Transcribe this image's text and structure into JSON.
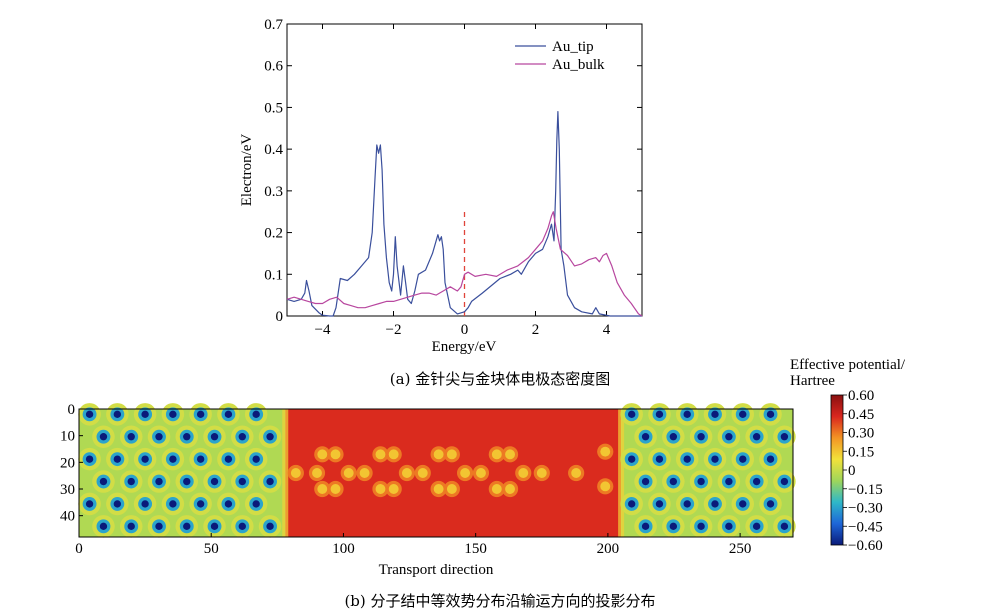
{
  "chart_data": [
    {
      "type": "line",
      "caption": "(a) 金针尖与金块体电极态密度图",
      "xlabel": "Energy/eV",
      "ylabel": "Electron/eV",
      "xlim": [
        -5,
        5
      ],
      "ylim": [
        0,
        0.7
      ],
      "xticks": [
        -4,
        -2,
        0,
        2,
        4
      ],
      "xtick_labels": [
        "−4",
        "−2",
        "0",
        "2",
        "4"
      ],
      "yticks": [
        0,
        0.1,
        0.2,
        0.3,
        0.4,
        0.5,
        0.6,
        0.7
      ],
      "ytick_labels": [
        "0",
        "0.1",
        "0.2",
        "0.3",
        "0.4",
        "0.5",
        "0.6",
        "0.7"
      ],
      "legend_position": "top-right",
      "fermi_line": {
        "x": 0,
        "y_range": [
          0,
          0.25
        ],
        "color": "#e0443a",
        "style": "dashed"
      },
      "series": [
        {
          "name": "Au_tip",
          "color": "#3a4f9c",
          "points": [
            [
              -5.0,
              0.04
            ],
            [
              -4.8,
              0.035
            ],
            [
              -4.6,
              0.04
            ],
            [
              -4.5,
              0.055
            ],
            [
              -4.45,
              0.085
            ],
            [
              -4.38,
              0.06
            ],
            [
              -4.3,
              0.025
            ],
            [
              -4.1,
              0.008
            ],
            [
              -4.0,
              0.002
            ],
            [
              -3.8,
              0.0
            ],
            [
              -3.7,
              0.0
            ],
            [
              -3.62,
              0.02
            ],
            [
              -3.5,
              0.09
            ],
            [
              -3.3,
              0.085
            ],
            [
              -3.1,
              0.1
            ],
            [
              -2.9,
              0.12
            ],
            [
              -2.7,
              0.14
            ],
            [
              -2.6,
              0.2
            ],
            [
              -2.52,
              0.33
            ],
            [
              -2.47,
              0.41
            ],
            [
              -2.42,
              0.39
            ],
            [
              -2.37,
              0.41
            ],
            [
              -2.32,
              0.35
            ],
            [
              -2.27,
              0.22
            ],
            [
              -2.2,
              0.14
            ],
            [
              -2.12,
              0.08
            ],
            [
              -2.05,
              0.06
            ],
            [
              -2.0,
              0.1
            ],
            [
              -1.95,
              0.19
            ],
            [
              -1.9,
              0.12
            ],
            [
              -1.8,
              0.05
            ],
            [
              -1.72,
              0.12
            ],
            [
              -1.66,
              0.08
            ],
            [
              -1.6,
              0.04
            ],
            [
              -1.5,
              0.03
            ],
            [
              -1.4,
              0.06
            ],
            [
              -1.3,
              0.1
            ],
            [
              -1.1,
              0.11
            ],
            [
              -0.9,
              0.15
            ],
            [
              -0.8,
              0.18
            ],
            [
              -0.75,
              0.195
            ],
            [
              -0.7,
              0.18
            ],
            [
              -0.65,
              0.19
            ],
            [
              -0.6,
              0.16
            ],
            [
              -0.55,
              0.08
            ],
            [
              -0.4,
              0.02
            ],
            [
              -0.2,
              0.005
            ],
            [
              0.0,
              0.01
            ],
            [
              0.1,
              0.02
            ],
            [
              0.2,
              0.035
            ],
            [
              0.5,
              0.055
            ],
            [
              1.0,
              0.09
            ],
            [
              1.3,
              0.1
            ],
            [
              1.5,
              0.11
            ],
            [
              1.6,
              0.1
            ],
            [
              1.8,
              0.13
            ],
            [
              2.0,
              0.15
            ],
            [
              2.2,
              0.16
            ],
            [
              2.35,
              0.19
            ],
            [
              2.45,
              0.22
            ],
            [
              2.52,
              0.18
            ],
            [
              2.57,
              0.3
            ],
            [
              2.6,
              0.42
            ],
            [
              2.63,
              0.49
            ],
            [
              2.67,
              0.4
            ],
            [
              2.72,
              0.16
            ],
            [
              2.8,
              0.12
            ],
            [
              2.9,
              0.05
            ],
            [
              3.1,
              0.02
            ],
            [
              3.3,
              0.01
            ],
            [
              3.6,
              0.005
            ],
            [
              3.7,
              0.02
            ],
            [
              3.8,
              0.005
            ],
            [
              4.1,
              0.0
            ],
            [
              5.0,
              0.0
            ]
          ]
        },
        {
          "name": "Au_bulk",
          "color": "#b8479f",
          "points": [
            [
              -5.0,
              0.04
            ],
            [
              -4.8,
              0.045
            ],
            [
              -4.6,
              0.04
            ],
            [
              -4.4,
              0.035
            ],
            [
              -4.2,
              0.03
            ],
            [
              -4.0,
              0.03
            ],
            [
              -3.8,
              0.04
            ],
            [
              -3.6,
              0.045
            ],
            [
              -3.4,
              0.03
            ],
            [
              -3.2,
              0.025
            ],
            [
              -3.0,
              0.02
            ],
            [
              -2.8,
              0.02
            ],
            [
              -2.6,
              0.025
            ],
            [
              -2.4,
              0.03
            ],
            [
              -2.2,
              0.035
            ],
            [
              -2.0,
              0.035
            ],
            [
              -1.8,
              0.04
            ],
            [
              -1.6,
              0.045
            ],
            [
              -1.4,
              0.05
            ],
            [
              -1.2,
              0.055
            ],
            [
              -1.0,
              0.055
            ],
            [
              -0.8,
              0.05
            ],
            [
              -0.6,
              0.06
            ],
            [
              -0.4,
              0.07
            ],
            [
              -0.2,
              0.06
            ],
            [
              -0.1,
              0.07
            ],
            [
              0.0,
              0.1
            ],
            [
              0.1,
              0.105
            ],
            [
              0.3,
              0.095
            ],
            [
              0.6,
              0.1
            ],
            [
              0.9,
              0.095
            ],
            [
              1.2,
              0.11
            ],
            [
              1.5,
              0.12
            ],
            [
              1.8,
              0.14
            ],
            [
              2.0,
              0.16
            ],
            [
              2.2,
              0.18
            ],
            [
              2.35,
              0.21
            ],
            [
              2.45,
              0.24
            ],
            [
              2.5,
              0.25
            ],
            [
              2.58,
              0.21
            ],
            [
              2.7,
              0.16
            ],
            [
              2.9,
              0.145
            ],
            [
              3.1,
              0.12
            ],
            [
              3.3,
              0.125
            ],
            [
              3.5,
              0.135
            ],
            [
              3.7,
              0.14
            ],
            [
              3.8,
              0.13
            ],
            [
              3.9,
              0.145
            ],
            [
              4.0,
              0.15
            ],
            [
              4.05,
              0.14
            ],
            [
              4.15,
              0.12
            ],
            [
              4.3,
              0.08
            ],
            [
              4.5,
              0.05
            ],
            [
              4.7,
              0.03
            ],
            [
              4.9,
              0.005
            ],
            [
              5.0,
              0.0
            ]
          ]
        }
      ]
    },
    {
      "type": "heatmap",
      "caption": "(b) 分子结中等效势分布沿输运方向的投影分布",
      "xlabel": "Transport direction",
      "ylabel": "",
      "xlim": [
        0,
        270
      ],
      "ylim": [
        0,
        48
      ],
      "xticks": [
        0,
        50,
        100,
        150,
        200,
        250
      ],
      "xtick_labels": [
        "0",
        "50",
        "100",
        "150",
        "200",
        "250"
      ],
      "yticks": [
        0,
        10,
        20,
        30,
        40
      ],
      "ytick_labels": [
        "0",
        "10",
        "20",
        "30",
        "40"
      ],
      "y_inverted": true,
      "colorbar": {
        "title": "Effective potential/ Hartree",
        "title_lines": [
          "Effective potential/",
          "Hartree"
        ],
        "range": [
          -0.6,
          0.6
        ],
        "tick_labels": [
          "0.60",
          "0.45",
          "0.30",
          "0.15",
          "0",
          "−0.15",
          "−0.30",
          "−0.45",
          "−0.60"
        ],
        "colormap": [
          "#0a1a7a",
          "#1e66d8",
          "#2fb8c8",
          "#9fd65a",
          "#f2e23a",
          "#f39424",
          "#d9261e",
          "#8a1010"
        ]
      },
      "regions": {
        "left_electrode_x": [
          0,
          78
        ],
        "molecule_x": [
          78,
          205
        ],
        "right_electrode_x": [
          205,
          270
        ],
        "electrode_value": -0.05,
        "molecule_background_value": 0.42,
        "atom_value": 0.15,
        "atom_outline_value": 0.05,
        "electrode_atom_center_value": -0.6
      },
      "molecule_atoms": [
        {
          "x": 82,
          "y": 24
        },
        {
          "x": 90,
          "y": 24
        },
        {
          "x": 92,
          "y": 17
        },
        {
          "x": 97,
          "y": 17
        },
        {
          "x": 92,
          "y": 30
        },
        {
          "x": 97,
          "y": 30
        },
        {
          "x": 102,
          "y": 24
        },
        {
          "x": 108,
          "y": 24
        },
        {
          "x": 114,
          "y": 17
        },
        {
          "x": 119,
          "y": 17
        },
        {
          "x": 114,
          "y": 30
        },
        {
          "x": 119,
          "y": 30
        },
        {
          "x": 124,
          "y": 24
        },
        {
          "x": 130,
          "y": 24
        },
        {
          "x": 136,
          "y": 17
        },
        {
          "x": 141,
          "y": 17
        },
        {
          "x": 136,
          "y": 30
        },
        {
          "x": 141,
          "y": 30
        },
        {
          "x": 146,
          "y": 24
        },
        {
          "x": 152,
          "y": 24
        },
        {
          "x": 158,
          "y": 17
        },
        {
          "x": 163,
          "y": 17
        },
        {
          "x": 158,
          "y": 30
        },
        {
          "x": 163,
          "y": 30
        },
        {
          "x": 168,
          "y": 24
        },
        {
          "x": 175,
          "y": 24
        },
        {
          "x": 188,
          "y": 24
        },
        {
          "x": 199,
          "y": 16
        },
        {
          "x": 199,
          "y": 29
        }
      ]
    }
  ]
}
